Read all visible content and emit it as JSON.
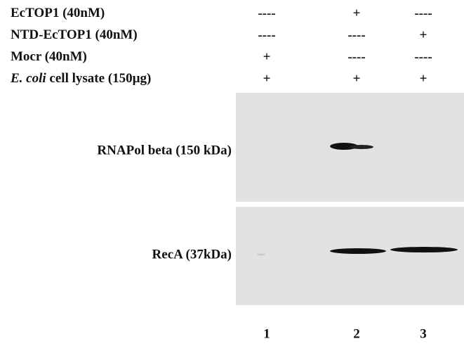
{
  "conditions": [
    {
      "label": "EcTOP1 (40nM)",
      "lanes": [
        "----",
        "+",
        "----"
      ]
    },
    {
      "label": "NTD-EcTOP1 (40nM)",
      "lanes": [
        "----",
        "----",
        "+"
      ]
    },
    {
      "label": "Mocr (40nM)",
      "lanes": [
        "+",
        "----",
        "----"
      ]
    },
    {
      "label_italic": "E. coli",
      "label": " cell lysate (150µg)",
      "lanes": [
        "+",
        "+",
        "+"
      ]
    }
  ],
  "blots": [
    {
      "label": "RNAPol beta (150 kDa)"
    },
    {
      "label": "RecA (37kDa)"
    }
  ],
  "lane_numbers": [
    "1",
    "2",
    "3"
  ]
}
